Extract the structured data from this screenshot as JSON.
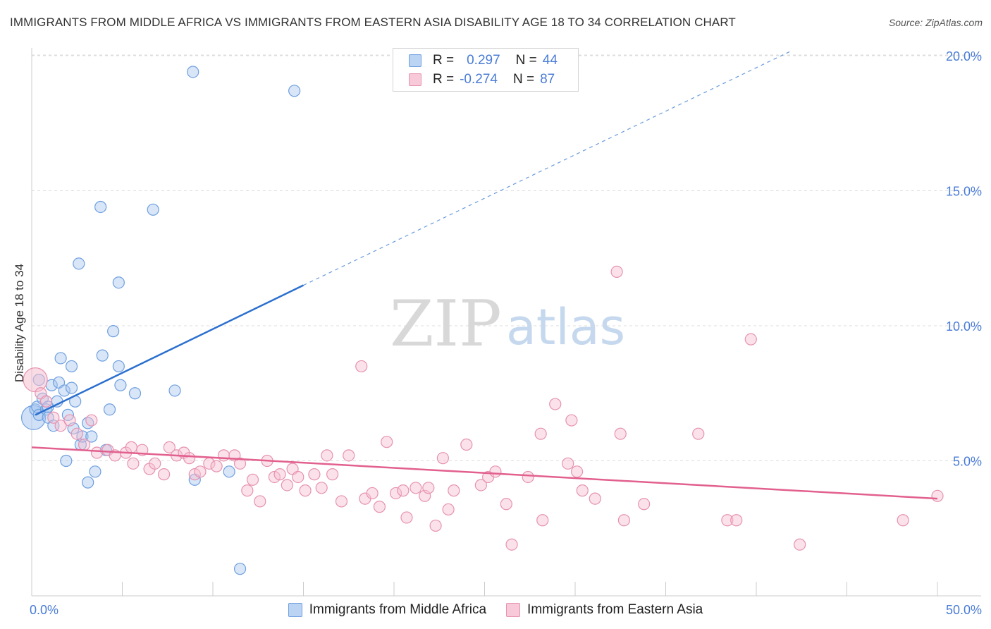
{
  "header": {
    "title": "IMMIGRANTS FROM MIDDLE AFRICA VS IMMIGRANTS FROM EASTERN ASIA DISABILITY AGE 18 TO 34 CORRELATION CHART",
    "source": "Source: ZipAtlas.com"
  },
  "watermark": {
    "zip": "ZIP",
    "atlas": "atlas"
  },
  "stats": {
    "blue": {
      "r_label": "R =",
      "r_value": "0.297",
      "n_label": "N =",
      "n_value": "44"
    },
    "pink": {
      "r_label": "R =",
      "r_value": "-0.274",
      "n_label": "N =",
      "n_value": "87"
    }
  },
  "legend": {
    "blue_label": "Immigrants from Middle Africa",
    "pink_label": "Immigrants from Eastern Asia"
  },
  "colors": {
    "blue_fill": "#a9c8f0",
    "blue_stroke": "#6f9fdf",
    "blue_line": "#2b6fcf",
    "pink_fill": "#f6bfd0",
    "pink_stroke": "#e692b0",
    "pink_line": "#e2608e",
    "tick_text": "#4a7cd6"
  },
  "chart_data": {
    "type": "scatter",
    "title": "IMMIGRANTS FROM MIDDLE AFRICA VS IMMIGRANTS FROM EASTERN ASIA DISABILITY AGE 18 TO 34 CORRELATION CHART",
    "xlabel": "",
    "ylabel": "Disability Age 18 to 34",
    "xlim": [
      0,
      50
    ],
    "ylim": [
      0,
      20.7
    ],
    "x_tick_labels": [
      {
        "value": 0,
        "label": "0.0%"
      },
      {
        "value": 50,
        "label": "50.0%"
      }
    ],
    "y_ticks": [
      {
        "value": 5,
        "label": "5.0%"
      },
      {
        "value": 10,
        "label": "10.0%"
      },
      {
        "value": 15,
        "label": "15.0%"
      },
      {
        "value": 20,
        "label": "20.0%"
      }
    ],
    "grid": true,
    "legend_position": "bottom",
    "series": [
      {
        "name": "Immigrants from Middle Africa",
        "color": "blue",
        "trend": {
          "x": [
            0.2,
            15
          ],
          "y": [
            6.7,
            11.5
          ],
          "dashed_to": [
            42,
            20.2
          ]
        },
        "points": [
          [
            0.1,
            6.6
          ],
          [
            0.2,
            6.9
          ],
          [
            0.3,
            7.0
          ],
          [
            0.4,
            6.7
          ],
          [
            0.6,
            7.3
          ],
          [
            0.8,
            6.9
          ],
          [
            0.9,
            7.0
          ],
          [
            0.9,
            6.6
          ],
          [
            1.1,
            7.8
          ],
          [
            1.2,
            6.3
          ],
          [
            1.4,
            7.2
          ],
          [
            1.5,
            7.9
          ],
          [
            1.6,
            8.8
          ],
          [
            1.8,
            7.6
          ],
          [
            2.0,
            6.7
          ],
          [
            2.2,
            7.7
          ],
          [
            2.2,
            8.5
          ],
          [
            2.3,
            6.2
          ],
          [
            2.4,
            7.2
          ],
          [
            2.6,
            12.3
          ],
          [
            2.7,
            5.6
          ],
          [
            2.8,
            5.9
          ],
          [
            1.9,
            5.0
          ],
          [
            3.1,
            6.4
          ],
          [
            3.1,
            4.2
          ],
          [
            3.3,
            5.9
          ],
          [
            3.5,
            4.6
          ],
          [
            3.8,
            14.4
          ],
          [
            3.9,
            8.9
          ],
          [
            4.1,
            5.4
          ],
          [
            4.3,
            6.9
          ],
          [
            4.5,
            9.8
          ],
          [
            4.8,
            11.6
          ],
          [
            4.8,
            8.5
          ],
          [
            4.9,
            7.8
          ],
          [
            5.7,
            7.5
          ],
          [
            6.7,
            14.3
          ],
          [
            7.9,
            7.6
          ],
          [
            8.9,
            19.4
          ],
          [
            9.0,
            4.3
          ],
          [
            10.9,
            4.6
          ],
          [
            11.5,
            1.0
          ],
          [
            14.5,
            18.7
          ],
          [
            0.4,
            8.0
          ]
        ]
      },
      {
        "name": "Immigrants from Eastern Asia",
        "color": "pink",
        "trend": {
          "x": [
            0,
            50
          ],
          "y": [
            5.5,
            3.6
          ]
        },
        "points": [
          [
            0.2,
            8.0
          ],
          [
            0.5,
            7.5
          ],
          [
            0.8,
            7.2
          ],
          [
            1.2,
            6.6
          ],
          [
            1.6,
            6.3
          ],
          [
            2.1,
            6.5
          ],
          [
            2.5,
            6.0
          ],
          [
            2.9,
            5.6
          ],
          [
            3.3,
            6.5
          ],
          [
            3.6,
            5.3
          ],
          [
            4.2,
            5.4
          ],
          [
            4.6,
            5.2
          ],
          [
            5.2,
            5.3
          ],
          [
            5.5,
            5.5
          ],
          [
            5.6,
            4.9
          ],
          [
            6.1,
            5.4
          ],
          [
            6.5,
            4.7
          ],
          [
            6.8,
            4.9
          ],
          [
            7.3,
            4.5
          ],
          [
            7.6,
            5.5
          ],
          [
            8.0,
            5.2
          ],
          [
            8.4,
            5.3
          ],
          [
            8.7,
            5.1
          ],
          [
            9.0,
            4.5
          ],
          [
            9.3,
            4.6
          ],
          [
            9.8,
            4.9
          ],
          [
            10.2,
            4.8
          ],
          [
            10.6,
            5.2
          ],
          [
            11.2,
            5.2
          ],
          [
            11.5,
            4.9
          ],
          [
            11.9,
            3.9
          ],
          [
            12.2,
            4.3
          ],
          [
            12.6,
            3.5
          ],
          [
            13.0,
            5.0
          ],
          [
            13.4,
            4.4
          ],
          [
            13.7,
            4.5
          ],
          [
            14.1,
            4.1
          ],
          [
            14.4,
            4.7
          ],
          [
            14.7,
            4.4
          ],
          [
            15.1,
            3.9
          ],
          [
            15.6,
            4.5
          ],
          [
            16.0,
            4.0
          ],
          [
            16.3,
            5.2
          ],
          [
            16.6,
            4.5
          ],
          [
            17.1,
            3.5
          ],
          [
            17.5,
            5.2
          ],
          [
            18.2,
            8.5
          ],
          [
            18.4,
            3.6
          ],
          [
            18.8,
            3.8
          ],
          [
            19.2,
            3.3
          ],
          [
            19.6,
            5.7
          ],
          [
            20.1,
            3.8
          ],
          [
            20.5,
            3.9
          ],
          [
            20.7,
            2.9
          ],
          [
            21.2,
            4.0
          ],
          [
            21.7,
            3.7
          ],
          [
            21.9,
            4.0
          ],
          [
            22.3,
            2.6
          ],
          [
            22.7,
            5.1
          ],
          [
            23.0,
            3.2
          ],
          [
            23.3,
            3.9
          ],
          [
            24.0,
            5.6
          ],
          [
            24.8,
            4.1
          ],
          [
            25.2,
            4.4
          ],
          [
            25.6,
            4.6
          ],
          [
            26.2,
            3.4
          ],
          [
            26.5,
            1.9
          ],
          [
            27.4,
            4.4
          ],
          [
            28.1,
            6.0
          ],
          [
            28.2,
            2.8
          ],
          [
            28.9,
            7.1
          ],
          [
            29.6,
            4.9
          ],
          [
            29.8,
            6.5
          ],
          [
            30.1,
            4.6
          ],
          [
            30.4,
            3.9
          ],
          [
            31.1,
            3.6
          ],
          [
            32.3,
            12.0
          ],
          [
            32.5,
            6.0
          ],
          [
            32.7,
            2.8
          ],
          [
            33.8,
            3.4
          ],
          [
            36.8,
            6.0
          ],
          [
            38.4,
            2.8
          ],
          [
            38.9,
            2.8
          ],
          [
            39.7,
            9.5
          ],
          [
            42.4,
            1.9
          ],
          [
            48.1,
            2.8
          ],
          [
            50.0,
            3.7
          ]
        ]
      }
    ]
  }
}
